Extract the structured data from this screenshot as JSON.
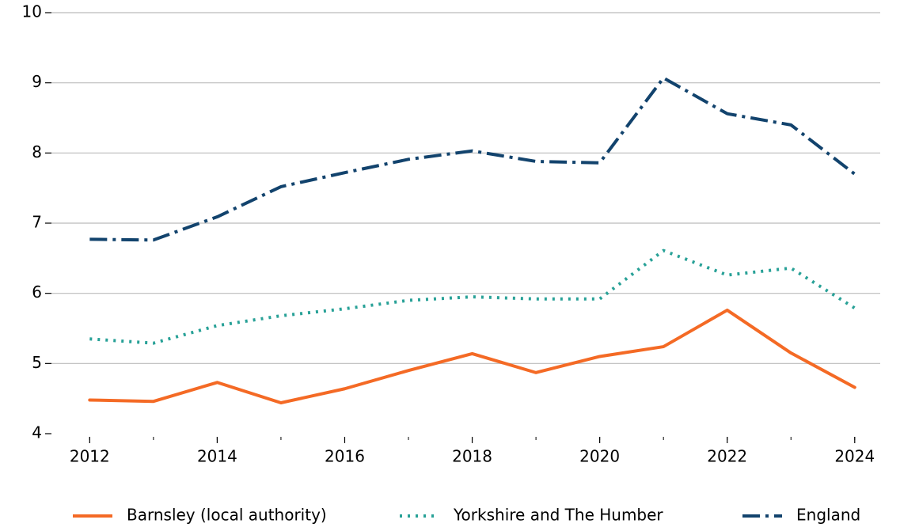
{
  "chart_data": {
    "type": "line",
    "x": [
      2012,
      2013,
      2014,
      2015,
      2016,
      2017,
      2018,
      2019,
      2020,
      2021,
      2022,
      2023,
      2024
    ],
    "series": [
      {
        "name": "Barnsley (local authority)",
        "color": "#f46a25",
        "style": "solid",
        "values": [
          4.48,
          4.46,
          4.73,
          4.44,
          4.64,
          4.9,
          5.14,
          4.87,
          5.1,
          5.24,
          5.76,
          5.15,
          4.66
        ]
      },
      {
        "name": "Yorkshire and The Humber",
        "color": "#28a197",
        "style": "dotted",
        "values": [
          5.35,
          5.29,
          5.54,
          5.68,
          5.78,
          5.9,
          5.95,
          5.92,
          5.92,
          6.61,
          6.26,
          6.36,
          5.79
        ]
      },
      {
        "name": "England",
        "color": "#12436d",
        "style": "dashdot",
        "values": [
          6.77,
          6.76,
          7.09,
          7.52,
          7.72,
          7.91,
          8.03,
          7.88,
          7.86,
          9.07,
          8.56,
          8.4,
          7.7
        ]
      }
    ],
    "xlim": [
      2011.4,
      2024.4
    ],
    "xticks": [
      2012,
      2014,
      2016,
      2018,
      2020,
      2022,
      2024
    ],
    "ylim": [
      4,
      10
    ],
    "yticks": [
      4,
      5,
      6,
      7,
      8,
      9,
      10
    ],
    "grid": true,
    "legend": "bottom"
  }
}
